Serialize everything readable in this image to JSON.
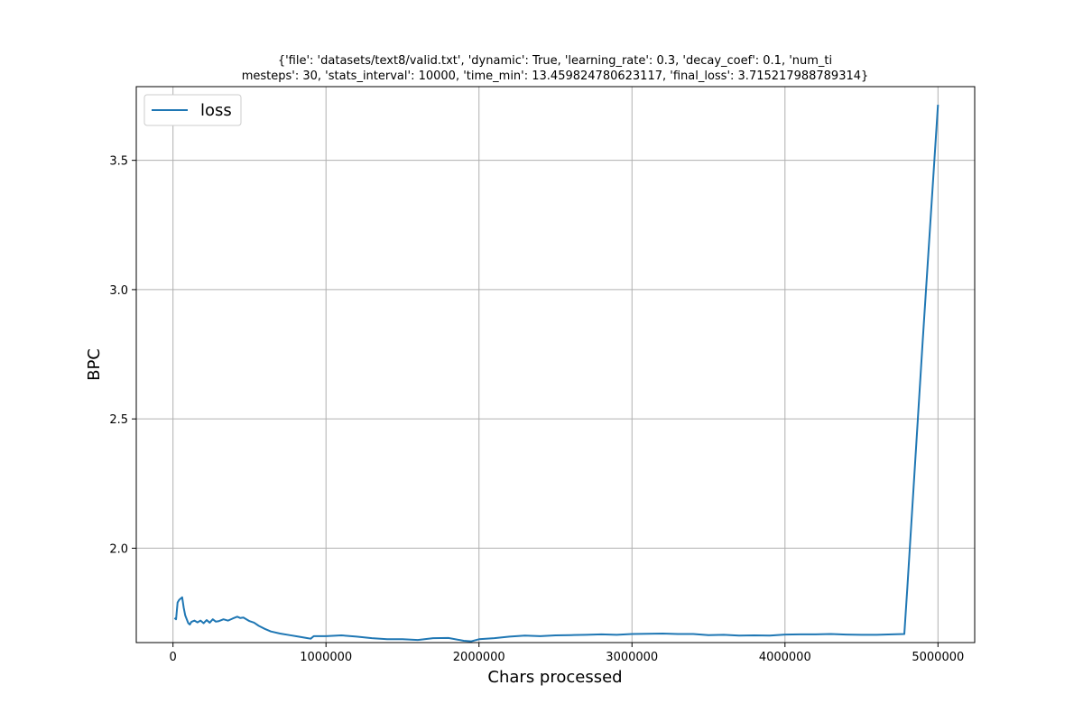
{
  "chart_data": {
    "type": "line",
    "title_lines": [
      "{'file': 'datasets/text8/valid.txt', 'dynamic': True, 'learning_rate': 0.3, 'decay_coef': 0.1, 'num_ti",
      "mesteps': 30, 'stats_interval': 10000, 'time_min': 13.459824780623117, 'final_loss': 3.715217988789314}"
    ],
    "xlabel": "Chars processed",
    "ylabel": "BPC",
    "xlim": [
      -240000,
      5240000
    ],
    "ylim": [
      1.635,
      3.785
    ],
    "xticks": [
      {
        "value": 0,
        "label": "0"
      },
      {
        "value": 1000000,
        "label": "1000000"
      },
      {
        "value": 2000000,
        "label": "2000000"
      },
      {
        "value": 3000000,
        "label": "3000000"
      },
      {
        "value": 4000000,
        "label": "4000000"
      },
      {
        "value": 5000000,
        "label": "5000000"
      }
    ],
    "yticks": [
      {
        "value": 2.0,
        "label": "2.0"
      },
      {
        "value": 2.5,
        "label": "2.5"
      },
      {
        "value": 3.0,
        "label": "3.0"
      },
      {
        "value": 3.5,
        "label": "3.5"
      }
    ],
    "grid": true,
    "legend_position": "top-left",
    "series": [
      {
        "name": "loss",
        "color": "#1f77b4",
        "x": [
          10000,
          20000,
          30000,
          40000,
          50000,
          60000,
          70000,
          80000,
          90000,
          100000,
          110000,
          120000,
          140000,
          160000,
          180000,
          200000,
          220000,
          240000,
          260000,
          280000,
          300000,
          330000,
          360000,
          390000,
          420000,
          440000,
          460000,
          480000,
          500000,
          530000,
          560000,
          600000,
          640000,
          700000,
          760000,
          820000,
          880000,
          900000,
          920000,
          1000000,
          1100000,
          1200000,
          1300000,
          1400000,
          1500000,
          1600000,
          1700000,
          1800000,
          1900000,
          1950000,
          2000000,
          2100000,
          2200000,
          2300000,
          2400000,
          2500000,
          2600000,
          2700000,
          2800000,
          2900000,
          3000000,
          3100000,
          3200000,
          3300000,
          3400000,
          3500000,
          3600000,
          3700000,
          3800000,
          3900000,
          4000000,
          4100000,
          4200000,
          4300000,
          4400000,
          4500000,
          4600000,
          4700000,
          4780000,
          4800000,
          4900000,
          5000000
        ],
        "y": [
          1.73,
          1.725,
          1.79,
          1.8,
          1.805,
          1.81,
          1.77,
          1.74,
          1.725,
          1.71,
          1.705,
          1.715,
          1.72,
          1.713,
          1.72,
          1.71,
          1.722,
          1.712,
          1.725,
          1.716,
          1.718,
          1.725,
          1.72,
          1.728,
          1.735,
          1.73,
          1.732,
          1.725,
          1.718,
          1.712,
          1.7,
          1.688,
          1.678,
          1.67,
          1.664,
          1.658,
          1.652,
          1.65,
          1.66,
          1.66,
          1.663,
          1.658,
          1.652,
          1.648,
          1.648,
          1.645,
          1.652,
          1.653,
          1.642,
          1.64,
          1.648,
          1.652,
          1.658,
          1.662,
          1.66,
          1.663,
          1.664,
          1.665,
          1.667,
          1.665,
          1.668,
          1.669,
          1.67,
          1.668,
          1.668,
          1.664,
          1.665,
          1.662,
          1.663,
          1.662,
          1.666,
          1.667,
          1.667,
          1.668,
          1.666,
          1.665,
          1.665,
          1.667,
          1.668,
          1.85,
          2.8,
          3.715
        ]
      }
    ]
  }
}
